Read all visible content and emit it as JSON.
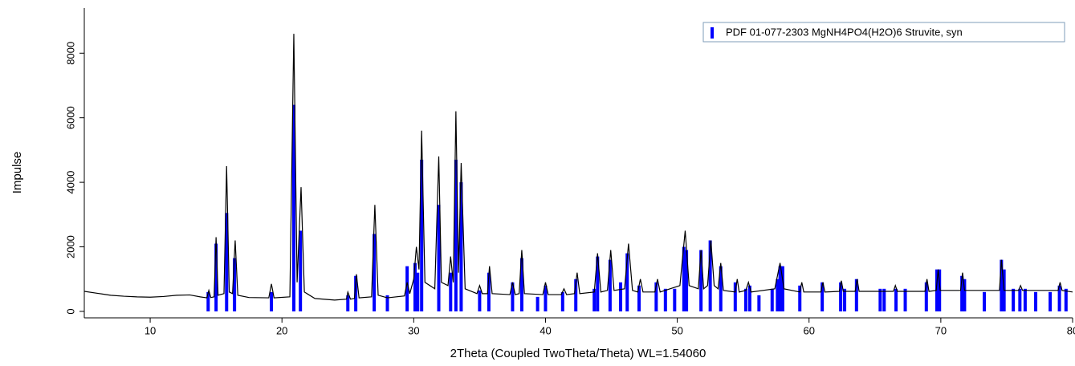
{
  "chart_data": {
    "type": "line",
    "xlabel": "2Theta (Coupled TwoTheta/Theta) WL=1.54060",
    "ylabel": "Impulse",
    "xlim": [
      5,
      80
    ],
    "xticks": [
      10,
      20,
      30,
      40,
      50,
      60,
      70,
      80
    ],
    "ylim": [
      -200,
      9300
    ],
    "yticks": [
      0,
      2000,
      4000,
      6000,
      8000
    ],
    "legend": "top-right",
    "series": [
      {
        "type": "line",
        "color": "#000000",
        "x": [
          5,
          6,
          7,
          8,
          9,
          10,
          11,
          12,
          13,
          13.8,
          14.3,
          14.45,
          14.6,
          14.85,
          15.0,
          15.15,
          15.6,
          15.8,
          16.0,
          16.25,
          16.45,
          16.65,
          17.5,
          19.0,
          19.2,
          19.4,
          20.6,
          20.9,
          21.15,
          21.45,
          21.7,
          22.5,
          24,
          24.9,
          25.0,
          25.2,
          25.5,
          25.65,
          25.85,
          26.8,
          27.05,
          27.3,
          28,
          29.3,
          29.5,
          29.7,
          30.0,
          30.2,
          30.4,
          30.6,
          30.85,
          31.6,
          31.9,
          32.1,
          32.6,
          32.8,
          33.0,
          33.2,
          33.4,
          33.6,
          33.9,
          34.8,
          35.0,
          35.2,
          35.6,
          35.75,
          35.95,
          37.3,
          37.5,
          37.7,
          38.0,
          38.2,
          38.4,
          39.8,
          40.0,
          40.2,
          41.2,
          41.4,
          41.6,
          42.2,
          42.4,
          42.6,
          43.7,
          43.95,
          44.2,
          44.7,
          44.95,
          45.2,
          46.0,
          46.3,
          46.6,
          47.0,
          47.2,
          47.4,
          48.3,
          48.5,
          48.7,
          50.2,
          50.6,
          50.9,
          51.6,
          51.8,
          52.0,
          52.3,
          52.55,
          52.8,
          53.1,
          53.3,
          53.5,
          54.4,
          54.55,
          54.7,
          55.2,
          55.4,
          55.6,
          57.4,
          57.8,
          58.1,
          59.3,
          59.45,
          59.6,
          60.9,
          61.05,
          61.2,
          62.3,
          62.45,
          62.6,
          63.5,
          63.65,
          63.8,
          66.4,
          66.55,
          66.7,
          68.8,
          68.95,
          69.1,
          69.65,
          69.8,
          69.95,
          71.5,
          71.65,
          71.8,
          74.45,
          74.6,
          74.8,
          75.9,
          76.05,
          76.2,
          78.9,
          79.05,
          79.2,
          80
        ],
        "values": [
          620,
          560,
          500,
          470,
          450,
          440,
          460,
          500,
          510,
          450,
          420,
          650,
          430,
          450,
          2300,
          500,
          550,
          4500,
          600,
          550,
          2200,
          500,
          430,
          420,
          850,
          420,
          450,
          8600,
          900,
          3850,
          600,
          400,
          350,
          380,
          600,
          380,
          400,
          1150,
          420,
          450,
          3300,
          500,
          420,
          480,
          900,
          550,
          1000,
          2000,
          1300,
          5600,
          900,
          700,
          4800,
          900,
          800,
          1700,
          900,
          6200,
          1200,
          4600,
          700,
          550,
          800,
          550,
          550,
          1400,
          550,
          520,
          900,
          520,
          550,
          1900,
          550,
          520,
          900,
          520,
          520,
          700,
          520,
          550,
          1200,
          550,
          600,
          1800,
          600,
          650,
          1900,
          650,
          700,
          2100,
          650,
          600,
          1000,
          600,
          600,
          1000,
          600,
          800,
          2500,
          800,
          700,
          1900,
          700,
          800,
          2200,
          800,
          700,
          1500,
          650,
          600,
          1000,
          600,
          650,
          900,
          600,
          700,
          1500,
          700,
          600,
          900,
          600,
          600,
          900,
          600,
          620,
          950,
          620,
          620,
          1000,
          620,
          620,
          800,
          620,
          620,
          1000,
          620,
          650,
          1300,
          650,
          650,
          1200,
          650,
          650,
          1600,
          650,
          650,
          800,
          650,
          650,
          900,
          650,
          600
        ]
      },
      {
        "type": "bar",
        "name": "PDF 01-077-2303 MgNH4PO4(H2O)6 Struvite, syn",
        "color": "#0000ff",
        "x": [
          14.4,
          15.0,
          15.8,
          16.4,
          19.2,
          20.9,
          21.4,
          25.0,
          25.6,
          27.0,
          28.0,
          29.5,
          30.1,
          30.3,
          30.6,
          31.9,
          32.8,
          33.2,
          33.6,
          35.0,
          35.7,
          37.5,
          38.2,
          39.4,
          40.0,
          41.3,
          42.3,
          43.7,
          43.95,
          44.9,
          45.7,
          46.2,
          47.1,
          48.4,
          49.1,
          49.8,
          50.5,
          50.7,
          51.8,
          52.5,
          53.3,
          54.4,
          55.2,
          55.5,
          56.2,
          57.2,
          57.6,
          57.8,
          58.0,
          59.3,
          61.0,
          62.4,
          62.7,
          63.6,
          65.4,
          65.7,
          66.6,
          67.3,
          68.9,
          69.7,
          69.9,
          71.6,
          71.8,
          73.3,
          74.6,
          74.8,
          75.5,
          76.0,
          76.4,
          77.2,
          78.3,
          79.0,
          79.5
        ],
        "values": [
          600,
          2100,
          3050,
          1650,
          600,
          6400,
          2500,
          500,
          1100,
          2400,
          500,
          1400,
          1500,
          1200,
          4700,
          3300,
          1200,
          4700,
          4000,
          650,
          1200,
          900,
          1650,
          450,
          800,
          600,
          1000,
          700,
          1700,
          1600,
          900,
          1800,
          800,
          900,
          700,
          700,
          2000,
          1900,
          1900,
          2200,
          1400,
          900,
          700,
          800,
          500,
          700,
          1000,
          1400,
          1400,
          800,
          900,
          900,
          700,
          1000,
          700,
          700,
          700,
          700,
          900,
          1300,
          1300,
          1100,
          1000,
          600,
          1600,
          1300,
          700,
          700,
          700,
          600,
          600,
          800,
          700
        ]
      }
    ]
  }
}
